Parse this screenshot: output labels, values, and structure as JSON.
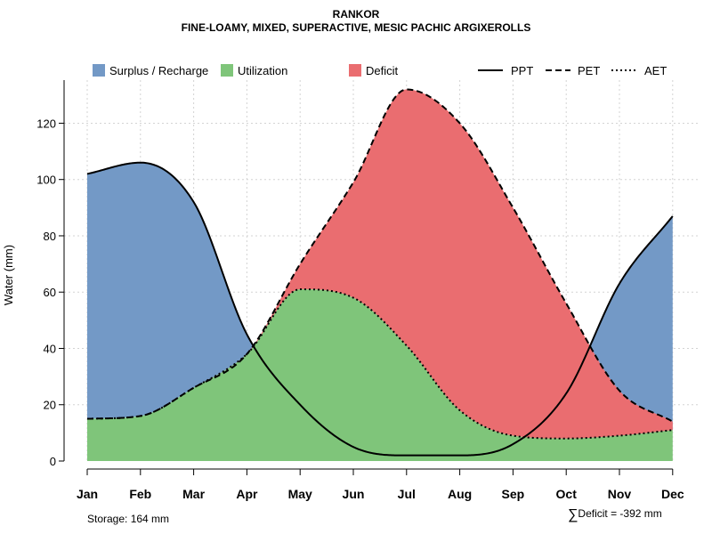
{
  "title": "RANKOR",
  "subtitle": "FINE-LOAMY, MIXED, SUPERACTIVE, MESIC PACHIC ARGIXEROLLS",
  "legend": {
    "surplus": "Surplus / Recharge",
    "utilization": "Utilization",
    "deficit": "Deficit",
    "ppt": "PPT",
    "pet": "PET",
    "aet": "AET"
  },
  "footer": {
    "storage": "Storage: 164 mm",
    "deficit_sigma": "∑",
    "deficit": "Deficit = -392 mm"
  },
  "colors": {
    "surplus": "#7399c6",
    "utilization": "#7fc57a",
    "deficit": "#ea6d70",
    "grid": "#d3d3d3"
  },
  "chart_data": {
    "type": "area",
    "title": "RANKOR",
    "subtitle": "FINE-LOAMY, MIXED, SUPERACTIVE, MESIC PACHIC ARGIXEROLLS",
    "xlabel": "",
    "ylabel": "Water (mm)",
    "categories": [
      "Jan",
      "Feb",
      "Mar",
      "Apr",
      "May",
      "Jun",
      "Jul",
      "Aug",
      "Sep",
      "Oct",
      "Nov",
      "Dec"
    ],
    "ylim": [
      0,
      135
    ],
    "yticks": [
      0,
      20,
      40,
      60,
      80,
      100,
      120
    ],
    "grid": true,
    "legend_position": "top",
    "series": [
      {
        "name": "PPT",
        "style": "solid",
        "values": [
          102,
          106,
          92,
          45,
          20,
          5,
          2,
          2,
          6,
          24,
          63,
          87
        ]
      },
      {
        "name": "PET",
        "style": "dashed",
        "values": [
          15,
          16,
          26,
          38,
          70,
          99,
          132,
          120,
          90,
          56,
          25,
          14
        ]
      },
      {
        "name": "AET",
        "style": "dotted",
        "values": [
          15,
          16,
          26,
          38,
          61,
          58,
          41,
          18,
          9,
          8,
          9,
          11
        ]
      }
    ],
    "storage_mm": 164,
    "total_deficit_mm": -392
  }
}
